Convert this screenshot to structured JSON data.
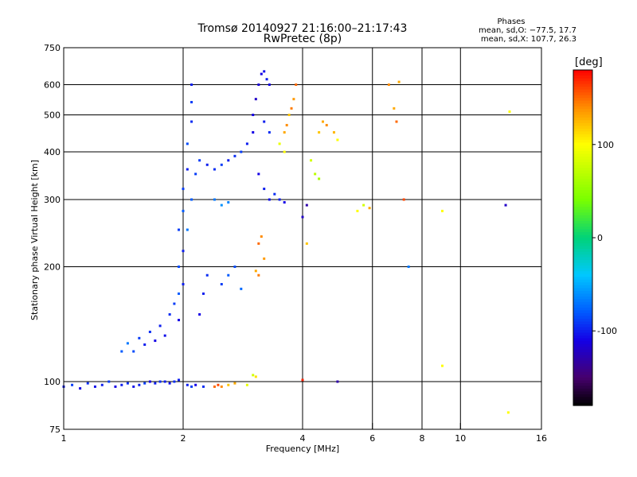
{
  "chart_data": {
    "type": "scatter",
    "title": "Tromsø 20140927 21:16:00–21:17:43",
    "subtitle": "RwPretec (8p)",
    "stats": {
      "heading": "Phases",
      "o_mode": "mean, sd,O: −77.5, 17.7",
      "x_mode": "mean, sd,X: 107.7, 26.3"
    },
    "xlabel": "Frequency [MHz]",
    "ylabel": "Stationary phase Virtual Height [km]",
    "xscale": "log",
    "yscale": "log",
    "xlim": [
      1,
      16
    ],
    "ylim": [
      75,
      750
    ],
    "xticks": [
      1,
      2,
      4,
      6,
      8,
      10,
      16
    ],
    "yticks": [
      75,
      100,
      200,
      300,
      400,
      500,
      600,
      750
    ],
    "x_gridlines": [
      2,
      4,
      6,
      8,
      10
    ],
    "y_gridlines": [
      100,
      200,
      300,
      400,
      500,
      600
    ],
    "grid": true,
    "colorbar": {
      "label": "[deg]",
      "range": [
        -180,
        180
      ],
      "ticks": [
        100,
        0,
        -100
      ]
    },
    "points": [
      {
        "x": 1.0,
        "y": 97,
        "phase": -100
      },
      {
        "x": 1.05,
        "y": 98,
        "phase": -90
      },
      {
        "x": 1.1,
        "y": 96,
        "phase": -110
      },
      {
        "x": 1.15,
        "y": 99,
        "phase": -95
      },
      {
        "x": 1.2,
        "y": 97,
        "phase": -105
      },
      {
        "x": 1.25,
        "y": 98,
        "phase": -100
      },
      {
        "x": 1.3,
        "y": 100,
        "phase": -90
      },
      {
        "x": 1.35,
        "y": 97,
        "phase": -110
      },
      {
        "x": 1.4,
        "y": 98,
        "phase": -100
      },
      {
        "x": 1.45,
        "y": 99,
        "phase": -95
      },
      {
        "x": 1.5,
        "y": 97,
        "phase": -105
      },
      {
        "x": 1.55,
        "y": 98,
        "phase": -100
      },
      {
        "x": 1.6,
        "y": 99,
        "phase": -90
      },
      {
        "x": 1.65,
        "y": 100,
        "phase": -110
      },
      {
        "x": 1.7,
        "y": 99,
        "phase": -100
      },
      {
        "x": 1.75,
        "y": 100,
        "phase": -95
      },
      {
        "x": 1.8,
        "y": 100,
        "phase": -100
      },
      {
        "x": 1.85,
        "y": 99,
        "phase": -105
      },
      {
        "x": 1.9,
        "y": 100,
        "phase": -95
      },
      {
        "x": 1.95,
        "y": 101,
        "phase": -100
      },
      {
        "x": 2.05,
        "y": 98,
        "phase": -100
      },
      {
        "x": 2.1,
        "y": 97,
        "phase": -90
      },
      {
        "x": 2.15,
        "y": 98,
        "phase": -110
      },
      {
        "x": 2.25,
        "y": 97,
        "phase": -95
      },
      {
        "x": 2.4,
        "y": 97,
        "phase": 150
      },
      {
        "x": 2.45,
        "y": 98,
        "phase": 160
      },
      {
        "x": 2.5,
        "y": 97,
        "phase": 140
      },
      {
        "x": 2.6,
        "y": 98,
        "phase": 120
      },
      {
        "x": 2.7,
        "y": 99,
        "phase": 130
      },
      {
        "x": 2.9,
        "y": 98,
        "phase": 90
      },
      {
        "x": 3.0,
        "y": 104,
        "phase": 80
      },
      {
        "x": 3.05,
        "y": 103,
        "phase": 110
      },
      {
        "x": 1.4,
        "y": 120,
        "phase": -80
      },
      {
        "x": 1.45,
        "y": 126,
        "phase": -70
      },
      {
        "x": 1.5,
        "y": 120,
        "phase": -85
      },
      {
        "x": 1.55,
        "y": 130,
        "phase": -90
      },
      {
        "x": 1.6,
        "y": 125,
        "phase": -100
      },
      {
        "x": 1.65,
        "y": 135,
        "phase": -95
      },
      {
        "x": 1.7,
        "y": 128,
        "phase": -110
      },
      {
        "x": 1.75,
        "y": 140,
        "phase": -100
      },
      {
        "x": 1.8,
        "y": 132,
        "phase": -105
      },
      {
        "x": 1.85,
        "y": 150,
        "phase": -95
      },
      {
        "x": 1.9,
        "y": 160,
        "phase": -90
      },
      {
        "x": 1.95,
        "y": 145,
        "phase": -110
      },
      {
        "x": 1.95,
        "y": 170,
        "phase": -80
      },
      {
        "x": 2.0,
        "y": 180,
        "phase": -100
      },
      {
        "x": 1.95,
        "y": 200,
        "phase": -85
      },
      {
        "x": 2.0,
        "y": 220,
        "phase": -100
      },
      {
        "x": 1.95,
        "y": 250,
        "phase": -90
      },
      {
        "x": 2.0,
        "y": 280,
        "phase": -80
      },
      {
        "x": 2.0,
        "y": 320,
        "phase": -90
      },
      {
        "x": 2.05,
        "y": 360,
        "phase": -100
      },
      {
        "x": 2.05,
        "y": 420,
        "phase": -85
      },
      {
        "x": 2.1,
        "y": 480,
        "phase": -95
      },
      {
        "x": 2.1,
        "y": 540,
        "phase": -90
      },
      {
        "x": 2.1,
        "y": 600,
        "phase": -100
      },
      {
        "x": 2.05,
        "y": 250,
        "phase": -70
      },
      {
        "x": 2.1,
        "y": 300,
        "phase": -80
      },
      {
        "x": 2.15,
        "y": 350,
        "phase": -90
      },
      {
        "x": 2.2,
        "y": 150,
        "phase": -110
      },
      {
        "x": 2.25,
        "y": 170,
        "phase": -100
      },
      {
        "x": 2.3,
        "y": 190,
        "phase": -95
      },
      {
        "x": 2.2,
        "y": 380,
        "phase": -90
      },
      {
        "x": 2.3,
        "y": 370,
        "phase": -100
      },
      {
        "x": 2.4,
        "y": 360,
        "phase": -95
      },
      {
        "x": 2.5,
        "y": 370,
        "phase": -90
      },
      {
        "x": 2.6,
        "y": 380,
        "phase": -100
      },
      {
        "x": 2.7,
        "y": 390,
        "phase": -95
      },
      {
        "x": 2.8,
        "y": 400,
        "phase": -90
      },
      {
        "x": 2.9,
        "y": 420,
        "phase": -100
      },
      {
        "x": 3.0,
        "y": 450,
        "phase": -110
      },
      {
        "x": 2.4,
        "y": 300,
        "phase": -70
      },
      {
        "x": 2.5,
        "y": 290,
        "phase": -60
      },
      {
        "x": 2.6,
        "y": 295,
        "phase": -65
      },
      {
        "x": 2.5,
        "y": 180,
        "phase": -90
      },
      {
        "x": 2.6,
        "y": 190,
        "phase": -80
      },
      {
        "x": 2.7,
        "y": 200,
        "phase": -85
      },
      {
        "x": 2.8,
        "y": 175,
        "phase": -75
      },
      {
        "x": 3.0,
        "y": 500,
        "phase": -110
      },
      {
        "x": 3.05,
        "y": 550,
        "phase": -120
      },
      {
        "x": 3.1,
        "y": 600,
        "phase": -115
      },
      {
        "x": 3.15,
        "y": 640,
        "phase": -110
      },
      {
        "x": 3.2,
        "y": 650,
        "phase": -105
      },
      {
        "x": 3.25,
        "y": 620,
        "phase": -100
      },
      {
        "x": 3.3,
        "y": 600,
        "phase": -110
      },
      {
        "x": 3.2,
        "y": 480,
        "phase": -100
      },
      {
        "x": 3.3,
        "y": 450,
        "phase": -95
      },
      {
        "x": 3.1,
        "y": 350,
        "phase": -110
      },
      {
        "x": 3.2,
        "y": 320,
        "phase": -100
      },
      {
        "x": 3.3,
        "y": 300,
        "phase": -105
      },
      {
        "x": 3.4,
        "y": 310,
        "phase": -95
      },
      {
        "x": 3.5,
        "y": 300,
        "phase": -100
      },
      {
        "x": 3.6,
        "y": 295,
        "phase": -110
      },
      {
        "x": 3.1,
        "y": 230,
        "phase": 150
      },
      {
        "x": 3.15,
        "y": 240,
        "phase": 140
      },
      {
        "x": 3.05,
        "y": 195,
        "phase": 130
      },
      {
        "x": 3.1,
        "y": 190,
        "phase": 145
      },
      {
        "x": 3.2,
        "y": 210,
        "phase": 135
      },
      {
        "x": 3.6,
        "y": 450,
        "phase": 130
      },
      {
        "x": 3.65,
        "y": 470,
        "phase": 140
      },
      {
        "x": 3.7,
        "y": 500,
        "phase": 120
      },
      {
        "x": 3.75,
        "y": 520,
        "phase": 145
      },
      {
        "x": 3.8,
        "y": 550,
        "phase": 135
      },
      {
        "x": 3.85,
        "y": 600,
        "phase": 150
      },
      {
        "x": 3.5,
        "y": 420,
        "phase": 90
      },
      {
        "x": 3.6,
        "y": 400,
        "phase": 100
      },
      {
        "x": 4.2,
        "y": 380,
        "phase": 80
      },
      {
        "x": 4.3,
        "y": 350,
        "phase": 70
      },
      {
        "x": 4.4,
        "y": 340,
        "phase": 60
      },
      {
        "x": 4.4,
        "y": 450,
        "phase": 120
      },
      {
        "x": 4.5,
        "y": 480,
        "phase": 130
      },
      {
        "x": 4.6,
        "y": 470,
        "phase": 140
      },
      {
        "x": 4.8,
        "y": 450,
        "phase": 125
      },
      {
        "x": 4.9,
        "y": 430,
        "phase": 100
      },
      {
        "x": 5.5,
        "y": 280,
        "phase": 100
      },
      {
        "x": 5.7,
        "y": 290,
        "phase": 80
      },
      {
        "x": 5.9,
        "y": 285,
        "phase": 130
      },
      {
        "x": 4.1,
        "y": 290,
        "phase": -130
      },
      {
        "x": 4.0,
        "y": 270,
        "phase": -120
      },
      {
        "x": 4.1,
        "y": 230,
        "phase": 120
      },
      {
        "x": 4.0,
        "y": 101,
        "phase": 170
      },
      {
        "x": 4.9,
        "y": 100,
        "phase": -130
      },
      {
        "x": 6.6,
        "y": 600,
        "phase": 140
      },
      {
        "x": 7.0,
        "y": 610,
        "phase": 130
      },
      {
        "x": 6.8,
        "y": 520,
        "phase": 130
      },
      {
        "x": 6.9,
        "y": 480,
        "phase": 150
      },
      {
        "x": 7.2,
        "y": 300,
        "phase": 160
      },
      {
        "x": 7.4,
        "y": 200,
        "phase": -70
      },
      {
        "x": 9.0,
        "y": 280,
        "phase": 100
      },
      {
        "x": 9.0,
        "y": 110,
        "phase": 100
      },
      {
        "x": 13.0,
        "y": 290,
        "phase": -120
      },
      {
        "x": 13.3,
        "y": 510,
        "phase": 100
      },
      {
        "x": 13.2,
        "y": 83,
        "phase": 100
      }
    ]
  }
}
